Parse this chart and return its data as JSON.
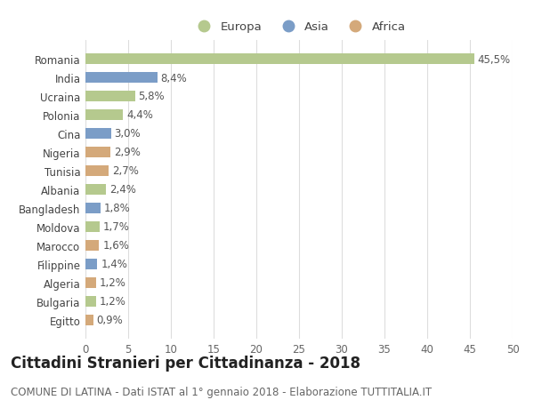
{
  "categories": [
    "Romania",
    "India",
    "Ucraina",
    "Polonia",
    "Cina",
    "Nigeria",
    "Tunisia",
    "Albania",
    "Bangladesh",
    "Moldova",
    "Marocco",
    "Filippine",
    "Algeria",
    "Bulgaria",
    "Egitto"
  ],
  "values": [
    45.5,
    8.4,
    5.8,
    4.4,
    3.0,
    2.9,
    2.7,
    2.4,
    1.8,
    1.7,
    1.6,
    1.4,
    1.2,
    1.2,
    0.9
  ],
  "labels": [
    "45,5%",
    "8,4%",
    "5,8%",
    "4,4%",
    "3,0%",
    "2,9%",
    "2,7%",
    "2,4%",
    "1,8%",
    "1,7%",
    "1,6%",
    "1,4%",
    "1,2%",
    "1,2%",
    "0,9%"
  ],
  "continents": [
    "Europa",
    "Asia",
    "Europa",
    "Europa",
    "Asia",
    "Africa",
    "Africa",
    "Europa",
    "Asia",
    "Europa",
    "Africa",
    "Asia",
    "Africa",
    "Europa",
    "Africa"
  ],
  "continent_colors": {
    "Europa": "#b5c98e",
    "Asia": "#7b9dc7",
    "Africa": "#d4a97a"
  },
  "legend_labels": [
    "Europa",
    "Asia",
    "Africa"
  ],
  "title": "Cittadini Stranieri per Cittadinanza - 2018",
  "subtitle": "COMUNE DI LATINA - Dati ISTAT al 1° gennaio 2018 - Elaborazione TUTTITALIA.IT",
  "xlim": [
    0,
    50
  ],
  "xticks": [
    0,
    5,
    10,
    15,
    20,
    25,
    30,
    35,
    40,
    45,
    50
  ],
  "background_color": "#ffffff",
  "grid_color": "#dddddd",
  "title_fontsize": 12,
  "subtitle_fontsize": 8.5,
  "label_fontsize": 8.5,
  "tick_fontsize": 8.5,
  "bar_height": 0.55
}
